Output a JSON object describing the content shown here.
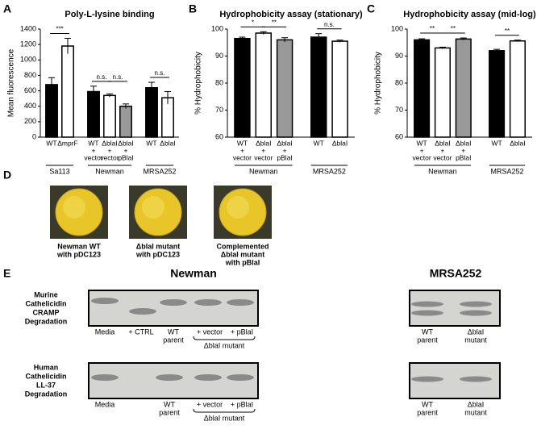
{
  "chart_data": [
    {
      "type": "bar",
      "panel": "A",
      "title": "Poly-L-lysine binding",
      "y_label": "Mean fluorescence",
      "ylim": [
        0,
        1400
      ],
      "yticks": [
        0,
        200,
        400,
        600,
        800,
        1000,
        1200,
        1400
      ],
      "groups": [
        {
          "name": "Sa113",
          "categories": [
            [
              "WT"
            ],
            [
              "ΔmprF"
            ]
          ],
          "values": [
            680,
            1180
          ],
          "errors": [
            90,
            100
          ],
          "colors": [
            "#000000",
            "#ffffff"
          ],
          "significance": [
            {
              "label": "***",
              "bars": [
                0,
                1
              ]
            }
          ]
        },
        {
          "name": "Newman",
          "categories": [
            [
              "WT",
              "+",
              "vector"
            ],
            [
              "ΔblaI",
              "+",
              "vector"
            ],
            [
              "ΔblaI",
              "+",
              "pBlaI"
            ]
          ],
          "values": [
            590,
            540,
            400
          ],
          "errors": [
            70,
            20,
            30
          ],
          "colors": [
            "#000000",
            "#ffffff",
            "#999999"
          ],
          "significance": [
            {
              "label": "n.s.",
              "bars": [
                0,
                1
              ]
            },
            {
              "label": "n.s.",
              "bars": [
                1,
                2
              ]
            }
          ]
        },
        {
          "name": "MRSA252",
          "categories": [
            [
              "WT"
            ],
            [
              "ΔblaI"
            ]
          ],
          "values": [
            640,
            510
          ],
          "errors": [
            70,
            80
          ],
          "colors": [
            "#000000",
            "#ffffff"
          ],
          "significance": [
            {
              "label": "n.s.",
              "bars": [
                0,
                1
              ]
            }
          ]
        }
      ]
    },
    {
      "type": "bar",
      "panel": "B",
      "title": "Hydrophobicity assay (stationary)",
      "y_label": "% Hydrophobicity",
      "ylim": [
        60,
        100
      ],
      "yticks": [
        60,
        70,
        80,
        90,
        100
      ],
      "groups": [
        {
          "name": "Newman",
          "categories": [
            [
              "WT",
              "+",
              "vector"
            ],
            [
              "ΔblaI",
              "+",
              "vector"
            ],
            [
              "ΔblaI",
              "+",
              "pBlaI"
            ]
          ],
          "values": [
            96.5,
            98.5,
            96
          ],
          "errors": [
            0.5,
            0.5,
            0.8
          ],
          "colors": [
            "#000000",
            "#ffffff",
            "#999999"
          ],
          "significance": [
            {
              "label": "*",
              "bars": [
                0,
                1
              ]
            },
            {
              "label": "**",
              "bars": [
                1,
                2
              ]
            }
          ]
        },
        {
          "name": "MRSA252",
          "categories": [
            [
              "WT"
            ],
            [
              "ΔblaI"
            ]
          ],
          "values": [
            97,
            95.5
          ],
          "errors": [
            1.3,
            0.4
          ],
          "colors": [
            "#000000",
            "#ffffff"
          ],
          "significance": [
            {
              "label": "n.s.",
              "bars": [
                0,
                1
              ]
            }
          ]
        }
      ]
    },
    {
      "type": "bar",
      "panel": "C",
      "title": "Hydrophobicity assay (mid-log)",
      "y_label": "% Hydrophobicity",
      "ylim": [
        60,
        100
      ],
      "yticks": [
        60,
        70,
        80,
        90,
        100
      ],
      "groups": [
        {
          "name": "Newman",
          "categories": [
            [
              "WT",
              "+",
              "vector"
            ],
            [
              "ΔblaI",
              "+",
              "vector"
            ],
            [
              "ΔblaI",
              "+",
              "pBlaI"
            ]
          ],
          "values": [
            96,
            93,
            96.3
          ],
          "errors": [
            0.4,
            0.3,
            0.4
          ],
          "colors": [
            "#000000",
            "#ffffff",
            "#999999"
          ],
          "significance": [
            {
              "label": "**",
              "bars": [
                0,
                1
              ]
            },
            {
              "label": "**",
              "bars": [
                1,
                2
              ]
            }
          ]
        },
        {
          "name": "MRSA252",
          "categories": [
            [
              "WT"
            ],
            [
              "ΔblaI"
            ]
          ],
          "values": [
            92,
            95.6
          ],
          "errors": [
            0.5,
            0.3
          ],
          "colors": [
            "#000000",
            "#ffffff"
          ],
          "significance": [
            {
              "label": "**",
              "bars": [
                0,
                1
              ]
            }
          ]
        }
      ]
    }
  ],
  "panel_d": {
    "label": "D",
    "plates": [
      [
        "Newman WT",
        "with pDC123"
      ],
      [
        "ΔblaI mutant",
        "with pDC123"
      ],
      [
        "Complemented",
        "ΔblaI mutant",
        "with pBlaI"
      ]
    ]
  },
  "panel_e": {
    "label": "E",
    "titles": [
      "Newman",
      "MRSA252"
    ],
    "rows": [
      {
        "label": [
          "Murine",
          "Cathelicidin",
          "CRAMP",
          "Degradation"
        ],
        "newman_lanes": [
          [
            "Media"
          ],
          [
            "+ CTRL"
          ],
          [
            "WT",
            "parent"
          ],
          [
            "+ vector"
          ],
          [
            "+ pBlaI"
          ]
        ],
        "bracket": "ΔblaI mutant",
        "mrsa_lanes": [
          [
            "WT",
            "parent"
          ],
          [
            "ΔblaI",
            "mutant"
          ]
        ]
      },
      {
        "label": [
          "Human",
          "Cathelicidin",
          "LL-37",
          "Degradation"
        ],
        "newman_lanes": [
          [
            "Media"
          ],
          [
            "WT",
            "parent"
          ],
          [
            "+ vector"
          ],
          [
            "+ pBlaI"
          ]
        ],
        "bracket": "ΔblaI mutant",
        "mrsa_lanes": [
          [
            "WT",
            "parent"
          ],
          [
            "ΔblaI",
            "mutant"
          ]
        ]
      }
    ]
  }
}
